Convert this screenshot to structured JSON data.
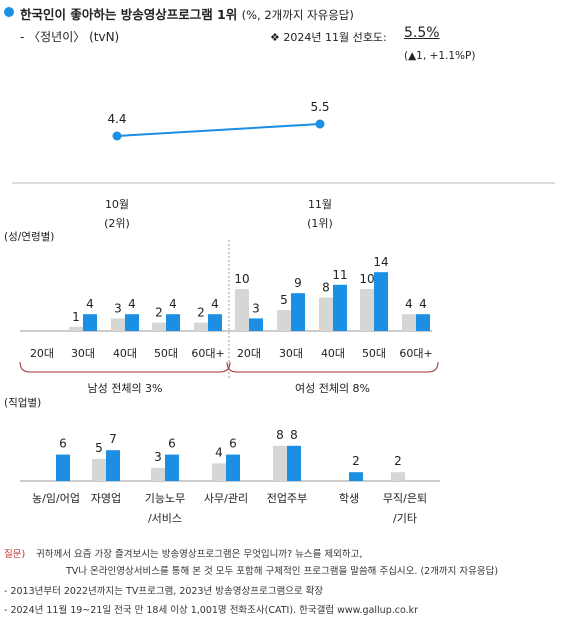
{
  "header": {
    "title": "한국인이 좋아하는 방송영상프로그램 1위",
    "title_unit": "(%, 2개까지 자유응답)",
    "program": "- 〈정년이〉 (tvN)",
    "pref_label": "❖  2024년 11월 선호도:",
    "pref_value": "5.5%",
    "pref_change": "(▲1, +1.1%P)"
  },
  "colors": {
    "accent": "#1a8fe3",
    "gray_bar": "#d6d6d6",
    "bracket": "#a03030"
  },
  "chart_data": [
    {
      "type": "line",
      "categories": [
        "10월",
        "11월"
      ],
      "category_sublabels": [
        "(2위)",
        "(1위)"
      ],
      "values": [
        4.4,
        5.5
      ],
      "data_labels": [
        "4.4",
        "5.5"
      ]
    },
    {
      "type": "bar",
      "section_label": "(성/연령별)",
      "groups": [
        {
          "name": "남성 전체의 3%",
          "categories": [
            "20대",
            "30대",
            "40대",
            "50대",
            "60대+"
          ],
          "series": [
            {
              "values": [
                null,
                1,
                3,
                2,
                2
              ],
              "labels": [
                "",
                "1",
                "3",
                "2",
                "2"
              ]
            },
            {
              "values": [
                null,
                4,
                4,
                4,
                4
              ],
              "labels": [
                "",
                "4",
                "4",
                "4",
                "4"
              ]
            }
          ]
        },
        {
          "name": "여성 전체의 8%",
          "categories": [
            "20대",
            "30대",
            "40대",
            "50대",
            "60대+"
          ],
          "series": [
            {
              "values": [
                10,
                5,
                8,
                10,
                4
              ],
              "labels": [
                "10",
                "5",
                "8",
                "10",
                "4"
              ]
            },
            {
              "values": [
                3,
                9,
                11,
                14,
                4
              ],
              "labels": [
                "3",
                "9",
                "11",
                "14",
                "4"
              ]
            }
          ]
        }
      ]
    },
    {
      "type": "bar",
      "section_label": "(직업별)",
      "categories": [
        "농/임/어업",
        "자영업",
        "기능노무\n/서비스",
        "사무/관리",
        "전업주부",
        "학생",
        "무직/은퇴\n/기타"
      ],
      "series": [
        {
          "values": [
            null,
            5,
            3,
            4,
            8,
            null,
            2
          ],
          "labels": [
            "",
            "5",
            "3",
            "4",
            "8",
            "",
            "2"
          ]
        },
        {
          "values": [
            6,
            7,
            6,
            6,
            8,
            2,
            null
          ],
          "labels": [
            "6",
            "7",
            "6",
            "6",
            "8",
            "2",
            ""
          ]
        }
      ]
    }
  ],
  "footer": {
    "q_tag": "질문)",
    "q_line1": "귀하께서 요즘 가장 즐겨보시는 방송영상프로그램은 무엇입니까? 뉴스를 제외하고,",
    "q_line2": "TV나 온라인영상서비스를 통해 본 것 모두 포함해 구체적인 프로그램을 말씀해 주십시오. (2개까지 자유응답)",
    "note1": "- 2013년부터 2022년까지는 TV프로그램, 2023년 방송영상프로그램으로 확장",
    "note2": "- 2024년 11월 19~21일 전국 만 18세 이상 1,001명 전화조사(CATI). 한국갤럽 www.gallup.co.kr"
  }
}
